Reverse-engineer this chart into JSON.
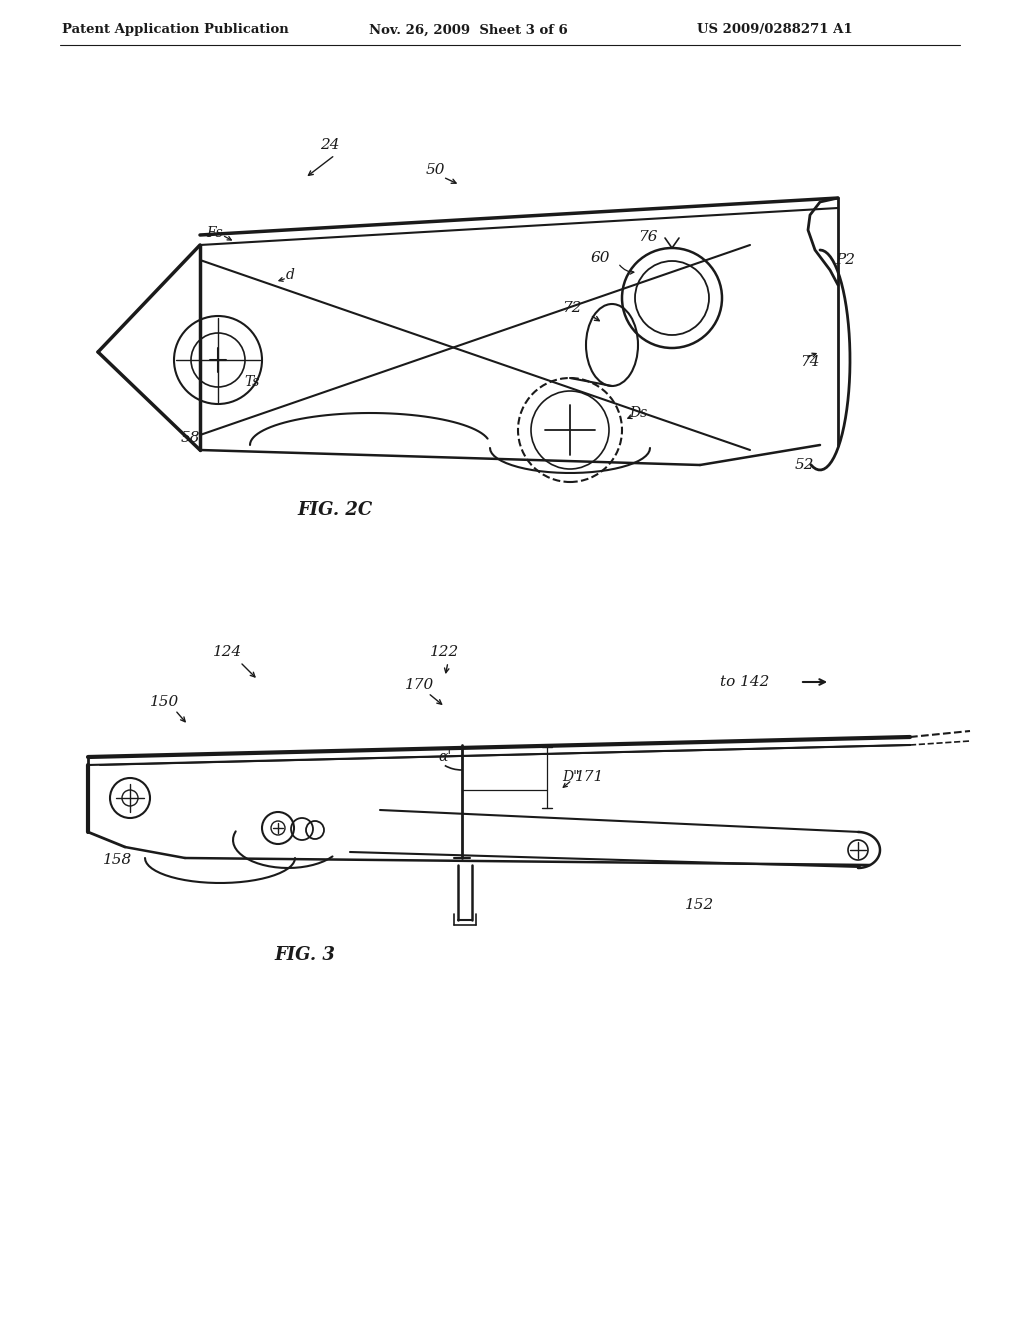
{
  "bg_color": "#ffffff",
  "header_left": "Patent Application Publication",
  "header_mid": "Nov. 26, 2009  Sheet 3 of 6",
  "header_right": "US 2009/0288271 A1",
  "fig2c_label": "FIG. 2C",
  "fig3_label": "FIG. 3",
  "line_color": "#1a1a1a",
  "text_color": "#1a1a1a"
}
